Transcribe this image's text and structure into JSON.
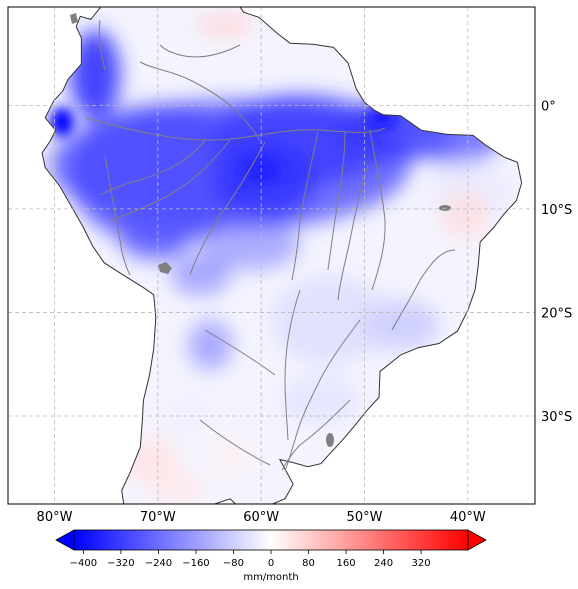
{
  "map": {
    "region": "South America",
    "extent": {
      "lon_min": -84.5,
      "lon_max": -33.5,
      "lat_min": -38.5,
      "lat_max": 9.5
    },
    "lon_ticks": [
      {
        "value": -80,
        "label": "80°W"
      },
      {
        "value": -70,
        "label": "70°W"
      },
      {
        "value": -60,
        "label": "60°W"
      },
      {
        "value": -50,
        "label": "50°W"
      },
      {
        "value": -40,
        "label": "40°W"
      }
    ],
    "lat_ticks": [
      {
        "value": 0,
        "label": "0°"
      },
      {
        "value": -10,
        "label": "10°S"
      },
      {
        "value": -20,
        "label": "20°S"
      },
      {
        "value": -30,
        "label": "30°S"
      }
    ],
    "gridlines": true,
    "gridline_style": "dashed",
    "colormap": "blue-white-red (bwr)",
    "colors": {
      "negative": "#0000ff",
      "zero": "#ffffff",
      "positive": "#ff0000",
      "coastline": "#333333",
      "rivers": "#808080"
    }
  },
  "colorbar": {
    "ticks": [
      "−400",
      "−320",
      "−240",
      "−160",
      "−80",
      "0",
      "80",
      "160",
      "240",
      "320"
    ],
    "tick_values": [
      -400,
      -320,
      -240,
      -160,
      -80,
      0,
      80,
      160,
      240,
      320
    ],
    "range": [
      -420,
      420
    ],
    "extend": "both",
    "unit_label": "mm/month"
  }
}
